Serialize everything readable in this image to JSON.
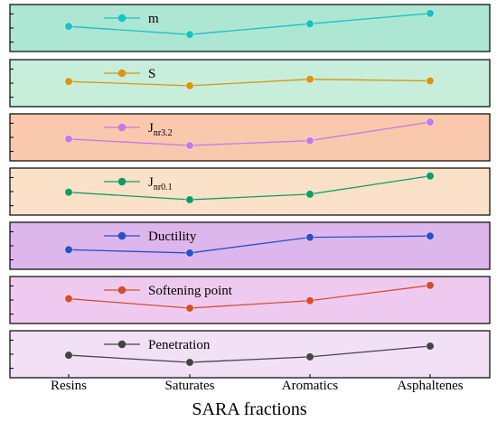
{
  "chart_data": {
    "type": "line",
    "xlabel": "SARA fractions",
    "categories": [
      "Resins",
      "Saturates",
      "Aromatics",
      "Asphaltenes"
    ],
    "panels": [
      {
        "name": "m",
        "sub": "",
        "color": "#17c3c3",
        "bg": "#ade6d2",
        "values": [
          0.55,
          0.3,
          0.63,
          0.95
        ]
      },
      {
        "name": "S",
        "sub": "",
        "color": "#d9960e",
        "bg": "#c6eedb",
        "values": [
          0.55,
          0.42,
          0.62,
          0.57
        ]
      },
      {
        "name": "J",
        "sub": "nr3.2",
        "color": "#c47ae6",
        "bg": "#f9c8ad",
        "values": [
          0.45,
          0.25,
          0.4,
          0.97
        ]
      },
      {
        "name": "J",
        "sub": "nr0.1",
        "color": "#109c62",
        "bg": "#fbe1c8",
        "values": [
          0.48,
          0.25,
          0.42,
          0.98
        ]
      },
      {
        "name": "Ductility",
        "sub": "",
        "color": "#2950c8",
        "bg": "#ddb6ec",
        "values": [
          0.38,
          0.28,
          0.76,
          0.8
        ]
      },
      {
        "name": "Softening point",
        "sub": "",
        "color": "#d84c2e",
        "bg": "#efcaf0",
        "values": [
          0.54,
          0.25,
          0.48,
          0.95
        ]
      },
      {
        "name": "Penetration",
        "sub": "",
        "color": "#444444",
        "bg": "#f2e0f7",
        "values": [
          0.47,
          0.25,
          0.42,
          0.75
        ]
      }
    ]
  }
}
